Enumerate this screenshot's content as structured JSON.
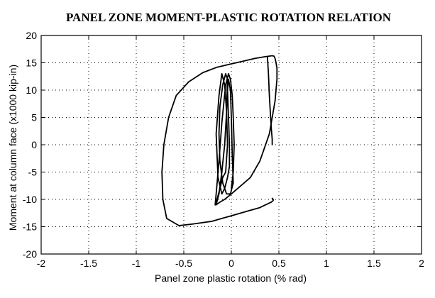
{
  "chart_data": {
    "type": "line",
    "title": "PANEL ZONE MOMENT-PLASTIC ROTATION RELATION",
    "xlabel": "Panel zone plastic rotation (% rad)",
    "ylabel": "Moment at column face (x1000 kip-in)",
    "xlim": [
      -2,
      2
    ],
    "ylim": [
      -20,
      20
    ],
    "xticks": [
      -2,
      -1.5,
      -1,
      -0.5,
      0,
      0.5,
      1,
      1.5,
      2
    ],
    "xtick_labels": [
      "-2",
      "-1.5",
      "-1",
      "-0.5",
      "0",
      "0.5",
      "1",
      "1.5",
      "2"
    ],
    "yticks": [
      -20,
      -15,
      -10,
      -5,
      0,
      5,
      10,
      15,
      20
    ],
    "ytick_labels": [
      "-20",
      "-15",
      "-10",
      "-5",
      "0",
      "5",
      "10",
      "15",
      "20"
    ],
    "grid": true,
    "series": [
      {
        "values_x": [
          0.0,
          0.02,
          0.03,
          0.02,
          0.01,
          -0.01,
          -0.03,
          -0.06,
          -0.1,
          -0.13,
          -0.16,
          -0.17,
          -0.15,
          -0.12,
          -0.09,
          -0.06,
          -0.04,
          -0.05,
          -0.07,
          -0.1,
          -0.13,
          -0.16,
          -0.14,
          -0.1,
          -0.07,
          -0.04,
          -0.02,
          -0.02,
          -0.03,
          -0.04,
          -0.03,
          -0.01,
          0.0,
          0.01,
          0.02,
          -0.01,
          -0.05,
          -0.09,
          -0.12,
          -0.13,
          -0.12,
          -0.09,
          -0.06,
          -0.04,
          -0.05,
          -0.07,
          -0.1,
          -0.13,
          -0.16,
          -0.17,
          -0.16,
          -0.12,
          -0.07,
          0.0,
          0.1,
          0.2,
          0.3,
          0.4,
          0.46,
          0.48,
          0.48,
          0.47,
          0.46,
          0.45,
          0.43,
          0.35,
          0.25,
          0.1,
          0.0,
          -0.15,
          -0.3,
          -0.45,
          -0.58,
          -0.66,
          -0.71,
          -0.73,
          -0.72,
          -0.68,
          -0.55,
          -0.4,
          -0.2,
          -0.1,
          0.0,
          0.1,
          0.2,
          0.3,
          0.36,
          0.42,
          0.44,
          0.44,
          0.44,
          0.43
        ],
        "values_y": [
          -8,
          -5,
          0,
          5,
          9,
          12,
          13,
          11,
          4,
          -3,
          -9,
          -11,
          -10,
          -8,
          -6,
          -5,
          0,
          6,
          11,
          13,
          9,
          2,
          -6,
          -9,
          -8,
          -6,
          -4,
          0,
          5,
          10,
          12,
          10,
          5,
          -2,
          -7,
          -9,
          -9,
          -7,
          -3,
          2,
          7,
          11,
          13,
          12,
          6,
          0,
          -5,
          -9,
          -11,
          -11,
          -11,
          -10.5,
          -10,
          -9,
          -7.5,
          -6,
          -3,
          2,
          8,
          12,
          14,
          15,
          15.8,
          16.2,
          16.3,
          16.1,
          15.8,
          15.2,
          14.8,
          14.2,
          13.2,
          11.5,
          9,
          5,
          0,
          -5,
          -10,
          -13.5,
          -14.8,
          -14.5,
          -14,
          -13.5,
          -13,
          -12.5,
          -12,
          -11.5,
          -11,
          -10.5,
          -10.2,
          -10,
          -10,
          -9.8
        ]
      },
      {
        "values_x": [
          0.38,
          0.39,
          0.4,
          0.41,
          0.42,
          0.43,
          0.43
        ],
        "values_y": [
          16,
          13,
          9,
          6,
          3,
          1,
          0
        ]
      }
    ]
  }
}
